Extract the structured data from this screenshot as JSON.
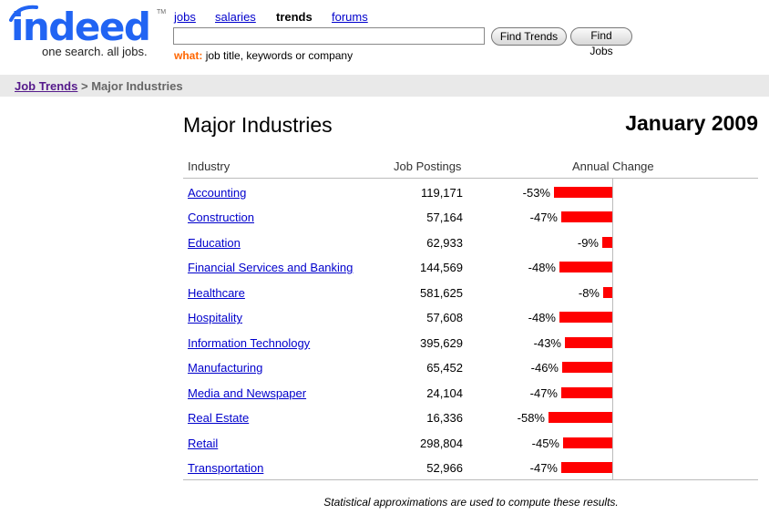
{
  "logo": {
    "word": "indeed",
    "tagline": "one search. all jobs.",
    "tm": "TM",
    "color": "#2164f3"
  },
  "nav": {
    "jobs": "jobs",
    "salaries": "salaries",
    "trends": "trends",
    "forums": "forums"
  },
  "search": {
    "value": "",
    "find_trends": "Find Trends",
    "find_jobs": "Find Jobs",
    "what_label": "what:",
    "what_hint": "job title, keywords or company"
  },
  "breadcrumb": {
    "root": "Job Trends",
    "separator": ">",
    "current": "Major Industries"
  },
  "page": {
    "title": "Major Industries",
    "date": "January 2009"
  },
  "table": {
    "headers": {
      "industry": "Industry",
      "postings": "Job Postings",
      "change": "Annual Change"
    },
    "bar_color": "#ff0000",
    "rows": [
      {
        "industry": "Accounting",
        "postings": "119,171",
        "change_label": "-53%",
        "change": -53
      },
      {
        "industry": "Construction",
        "postings": "57,164",
        "change_label": "-47%",
        "change": -47
      },
      {
        "industry": "Education",
        "postings": "62,933",
        "change_label": "-9%",
        "change": -9
      },
      {
        "industry": "Financial Services and Banking",
        "postings": "144,569",
        "change_label": "-48%",
        "change": -48
      },
      {
        "industry": "Healthcare",
        "postings": "581,625",
        "change_label": "-8%",
        "change": -8
      },
      {
        "industry": "Hospitality",
        "postings": "57,608",
        "change_label": "-48%",
        "change": -48
      },
      {
        "industry": "Information Technology",
        "postings": "395,629",
        "change_label": "-43%",
        "change": -43
      },
      {
        "industry": "Manufacturing",
        "postings": "65,452",
        "change_label": "-46%",
        "change": -46
      },
      {
        "industry": "Media and Newspaper",
        "postings": "24,104",
        "change_label": "-47%",
        "change": -47
      },
      {
        "industry": "Real Estate",
        "postings": "16,336",
        "change_label": "-58%",
        "change": -58
      },
      {
        "industry": "Retail",
        "postings": "298,804",
        "change_label": "-45%",
        "change": -45
      },
      {
        "industry": "Transportation",
        "postings": "52,966",
        "change_label": "-47%",
        "change": -47
      }
    ]
  },
  "footnote": "Statistical approximations are used to compute these results."
}
